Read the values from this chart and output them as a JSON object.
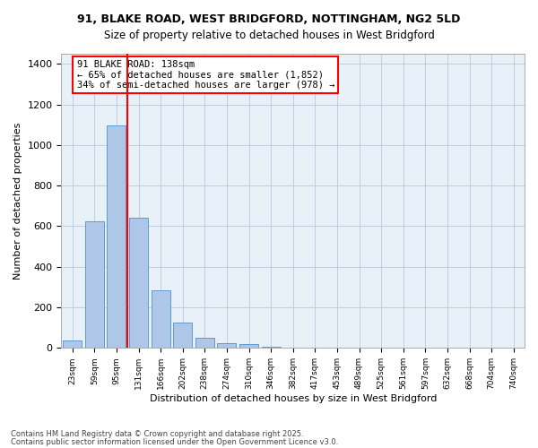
{
  "title_line1": "91, BLAKE ROAD, WEST BRIDGFORD, NOTTINGHAM, NG2 5LD",
  "title_line2": "Size of property relative to detached houses in West Bridgford",
  "xlabel": "Distribution of detached houses by size in West Bridgford",
  "ylabel": "Number of detached properties",
  "bins": [
    "23sqm",
    "59sqm",
    "95sqm",
    "131sqm",
    "166sqm",
    "202sqm",
    "238sqm",
    "274sqm",
    "310sqm",
    "346sqm",
    "382sqm",
    "417sqm",
    "453sqm",
    "489sqm",
    "525sqm",
    "561sqm",
    "597sqm",
    "632sqm",
    "668sqm",
    "704sqm",
    "740sqm"
  ],
  "values": [
    35,
    622,
    1095,
    640,
    285,
    125,
    50,
    23,
    20,
    7,
    0,
    0,
    0,
    0,
    0,
    0,
    0,
    0,
    0,
    0,
    0
  ],
  "bar_color": "#aec6e8",
  "bar_edge_color": "#5b9bd5",
  "vline_color": "red",
  "annotation_text": "91 BLAKE ROAD: 138sqm\n← 65% of detached houses are smaller (1,852)\n34% of semi-detached houses are larger (978) →",
  "ylim": [
    0,
    1450
  ],
  "yticks": [
    0,
    200,
    400,
    600,
    800,
    1000,
    1200,
    1400
  ],
  "background_color": "#e8f0f8",
  "grid_color": "#c0cce0",
  "footer_line1": "Contains HM Land Registry data © Crown copyright and database right 2025.",
  "footer_line2": "Contains public sector information licensed under the Open Government Licence v3.0."
}
